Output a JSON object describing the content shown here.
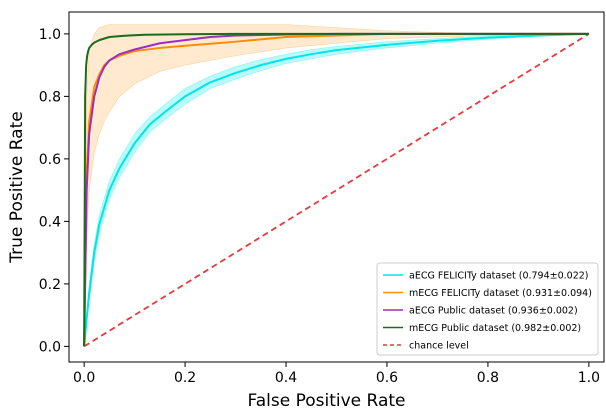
{
  "chart_data": {
    "type": "line",
    "title": "",
    "xlabel": "False Positive Rate",
    "ylabel": "True Positive Rate",
    "xlim": [
      -0.03,
      1.03
    ],
    "ylim": [
      -0.05,
      1.07
    ],
    "xticks": [
      "0.0",
      "0.2",
      "0.4",
      "0.6",
      "0.8",
      "1.0"
    ],
    "yticks": [
      "0.0",
      "0.2",
      "0.4",
      "0.6",
      "0.8",
      "1.0"
    ],
    "grid": false,
    "legend_position": "lower-right",
    "series": [
      {
        "name": "aECG FELICITy dataset (0.794±0.022)",
        "color": "#00e5e5",
        "band_color": "#7ff5f5",
        "x": [
          0,
          0.005,
          0.01,
          0.02,
          0.03,
          0.05,
          0.07,
          0.1,
          0.13,
          0.16,
          0.2,
          0.25,
          0.3,
          0.35,
          0.4,
          0.45,
          0.5,
          0.6,
          0.7,
          0.8,
          0.9,
          1.0
        ],
        "y": [
          0,
          0.09,
          0.17,
          0.3,
          0.39,
          0.5,
          0.57,
          0.65,
          0.71,
          0.75,
          0.8,
          0.845,
          0.875,
          0.9,
          0.92,
          0.935,
          0.948,
          0.965,
          0.978,
          0.988,
          0.995,
          1.0
        ],
        "y_upper": [
          0,
          0.11,
          0.2,
          0.33,
          0.42,
          0.53,
          0.6,
          0.68,
          0.735,
          0.775,
          0.825,
          0.865,
          0.895,
          0.918,
          0.935,
          0.95,
          0.96,
          0.975,
          0.985,
          0.993,
          0.998,
          1.0
        ],
        "y_lower": [
          0,
          0.07,
          0.14,
          0.27,
          0.36,
          0.47,
          0.54,
          0.62,
          0.685,
          0.725,
          0.775,
          0.825,
          0.855,
          0.882,
          0.905,
          0.92,
          0.935,
          0.955,
          0.97,
          0.983,
          0.992,
          1.0
        ]
      },
      {
        "name": "mECG FELICITy dataset (0.931±0.094)",
        "color": "#ff8c00",
        "band_color": "#ffd9a8",
        "x": [
          0,
          0.005,
          0.01,
          0.02,
          0.03,
          0.04,
          0.05,
          0.07,
          0.1,
          0.15,
          0.2,
          0.3,
          0.4,
          0.5,
          0.6,
          0.8,
          1.0
        ],
        "y": [
          0,
          0.55,
          0.72,
          0.83,
          0.87,
          0.9,
          0.915,
          0.93,
          0.945,
          0.955,
          0.962,
          0.975,
          0.99,
          0.995,
          1.0,
          1.0,
          1.0
        ],
        "y_upper": [
          0,
          0.8,
          0.95,
          1.0,
          1.02,
          1.025,
          1.03,
          1.03,
          1.03,
          1.03,
          1.03,
          1.03,
          1.03,
          1.02,
          1.01,
          1.0,
          1.0
        ],
        "y_lower": [
          0,
          0.35,
          0.5,
          0.62,
          0.68,
          0.72,
          0.75,
          0.8,
          0.84,
          0.88,
          0.9,
          0.93,
          0.955,
          0.97,
          0.985,
          0.995,
          1.0
        ]
      },
      {
        "name": "aECG Public dataset (0.936±0.002)",
        "color": "#9a2fbf",
        "x": [
          0,
          0.005,
          0.01,
          0.02,
          0.03,
          0.04,
          0.05,
          0.07,
          0.1,
          0.15,
          0.2,
          0.25,
          0.3,
          0.4,
          0.5,
          0.6,
          0.8,
          1.0
        ],
        "y": [
          0,
          0.5,
          0.68,
          0.8,
          0.86,
          0.895,
          0.915,
          0.935,
          0.95,
          0.97,
          0.98,
          0.99,
          0.995,
          0.998,
          1.0,
          1.0,
          1.0,
          1.0
        ]
      },
      {
        "name": "mECG Public dataset (0.982±0.002)",
        "color": "#1a6b1a",
        "x": [
          0,
          0.002,
          0.004,
          0.006,
          0.008,
          0.01,
          0.015,
          0.02,
          0.03,
          0.05,
          0.08,
          0.12,
          0.2,
          0.3,
          0.5,
          1.0
        ],
        "y": [
          0,
          0.8,
          0.9,
          0.93,
          0.945,
          0.955,
          0.965,
          0.972,
          0.98,
          0.99,
          0.994,
          0.997,
          0.999,
          1.0,
          1.0,
          1.0
        ]
      }
    ],
    "reference_line": {
      "name": "chance level",
      "color": "#e83a3a",
      "x": [
        0,
        1
      ],
      "y": [
        0,
        1
      ]
    }
  }
}
